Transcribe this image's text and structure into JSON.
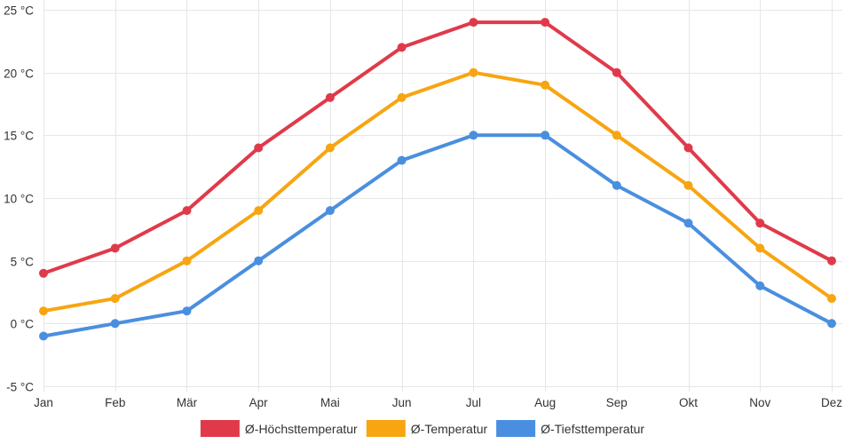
{
  "chart_data": {
    "type": "line",
    "categories": [
      "Jan",
      "Feb",
      "Mär",
      "Apr",
      "Mai",
      "Jun",
      "Jul",
      "Aug",
      "Sep",
      "Okt",
      "Nov",
      "Dez"
    ],
    "series": [
      {
        "name": "Ø-Höchsttemperatur",
        "color": "#e03a4a",
        "values": [
          4,
          6,
          9,
          14,
          18,
          22,
          24,
          24,
          20,
          14,
          8,
          5
        ]
      },
      {
        "name": "Ø-Temperatur",
        "color": "#f7a511",
        "values": [
          1,
          2,
          5,
          9,
          14,
          18,
          20,
          19,
          15,
          11,
          6,
          2
        ]
      },
      {
        "name": "Ø-Tiefsttemperatur",
        "color": "#4a8fdf",
        "values": [
          -1,
          0,
          1,
          5,
          9,
          13,
          15,
          15,
          11,
          8,
          3,
          0
        ]
      }
    ],
    "yticks": [
      25,
      20,
      15,
      10,
      5,
      0,
      -5
    ],
    "ytick_labels": [
      "25 °C",
      "20 °C",
      "15 °C",
      "10 °C",
      "5 °C",
      "0 °C",
      "-5 °C"
    ],
    "ylim": [
      -5,
      25
    ],
    "grid": true,
    "legend": "bottom",
    "title": "",
    "xlabel": "",
    "ylabel": ""
  }
}
